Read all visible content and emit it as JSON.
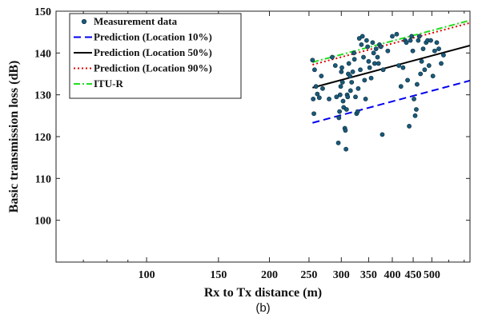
{
  "caption": "(b)",
  "chart_data": {
    "type": "scatter",
    "xlabel": "Rx to Tx distance (m)",
    "ylabel": "Basic transmission loss (dB)",
    "xscale": "log",
    "xlim": [
      60,
      620
    ],
    "ylim": [
      90,
      150
    ],
    "xticks": [
      100,
      150,
      200,
      250,
      300,
      350,
      400,
      450,
      500
    ],
    "xtick_labels": [
      "100",
      "150",
      "200",
      "250",
      "300",
      "350",
      "400",
      "450",
      "500"
    ],
    "yticks": [
      100,
      110,
      120,
      130,
      140,
      150
    ],
    "ytick_labels": [
      "100",
      "110",
      "120",
      "130",
      "140",
      "150"
    ],
    "grid": false,
    "legend_position": "top-left",
    "measurement": {
      "name": "Measurement data",
      "color": "#1a5a7a",
      "points": [
        [
          255,
          138.3
        ],
        [
          256,
          129.0
        ],
        [
          257,
          125.5
        ],
        [
          258,
          136.0
        ],
        [
          260,
          132.0
        ],
        [
          262,
          130.2
        ],
        [
          265,
          129.3
        ],
        [
          268,
          134.5
        ],
        [
          270,
          131.5
        ],
        [
          280,
          129.0
        ],
        [
          285,
          139.0
        ],
        [
          290,
          137.0
        ],
        [
          292,
          129.5
        ],
        [
          295,
          118.5
        ],
        [
          296,
          124.5
        ],
        [
          297,
          126.0
        ],
        [
          298,
          130.0
        ],
        [
          299,
          132.0
        ],
        [
          300,
          135.5
        ],
        [
          301,
          136.5
        ],
        [
          302,
          133.0
        ],
        [
          303,
          128.5
        ],
        [
          304,
          127.0
        ],
        [
          306,
          122.0
        ],
        [
          307,
          121.5
        ],
        [
          308,
          117.0
        ],
        [
          309,
          126.5
        ],
        [
          310,
          130.0
        ],
        [
          311,
          129.5
        ],
        [
          312,
          135.0
        ],
        [
          313,
          137.5
        ],
        [
          315,
          134.5
        ],
        [
          316,
          131.0
        ],
        [
          318,
          133.0
        ],
        [
          320,
          135.5
        ],
        [
          322,
          140.0
        ],
        [
          323,
          138.5
        ],
        [
          325,
          129.5
        ],
        [
          327,
          125.5
        ],
        [
          329,
          126.0
        ],
        [
          330,
          131.5
        ],
        [
          332,
          143.5
        ],
        [
          334,
          136.0
        ],
        [
          336,
          142.0
        ],
        [
          338,
          144.0
        ],
        [
          340,
          139.0
        ],
        [
          342,
          133.5
        ],
        [
          344,
          129.0
        ],
        [
          346,
          143.0
        ],
        [
          348,
          141.5
        ],
        [
          350,
          138.0
        ],
        [
          352,
          136.5
        ],
        [
          355,
          134.0
        ],
        [
          358,
          142.5
        ],
        [
          360,
          140.0
        ],
        [
          362,
          137.5
        ],
        [
          365,
          141.0
        ],
        [
          368,
          139.0
        ],
        [
          370,
          137.5
        ],
        [
          372,
          142.0
        ],
        [
          375,
          141.5
        ],
        [
          378,
          120.5
        ],
        [
          380,
          136.0
        ],
        [
          390,
          140.5
        ],
        [
          400,
          144.0
        ],
        [
          410,
          144.5
        ],
        [
          415,
          137.0
        ],
        [
          420,
          132.0
        ],
        [
          425,
          136.5
        ],
        [
          430,
          143.0
        ],
        [
          433,
          142.5
        ],
        [
          436,
          133.5
        ],
        [
          440,
          122.5
        ],
        [
          443,
          143.0
        ],
        [
          446,
          144.0
        ],
        [
          449,
          140.5
        ],
        [
          452,
          129.0
        ],
        [
          455,
          125.0
        ],
        [
          458,
          126.5
        ],
        [
          460,
          132.5
        ],
        [
          463,
          143.0
        ],
        [
          466,
          144.0
        ],
        [
          469,
          135.0
        ],
        [
          472,
          138.0
        ],
        [
          476,
          141.0
        ],
        [
          480,
          136.0
        ],
        [
          484,
          142.5
        ],
        [
          488,
          143.0
        ],
        [
          492,
          137.0
        ],
        [
          497,
          143.0
        ],
        [
          503,
          134.5
        ],
        [
          508,
          140.5
        ],
        [
          514,
          142.5
        ],
        [
          520,
          141.0
        ],
        [
          527,
          137.5
        ],
        [
          534,
          139.5
        ]
      ]
    },
    "series": [
      {
        "name": "Prediction (Location 10%)",
        "color": "#0000ee",
        "dash": "dashed",
        "x": [
          255,
          620
        ],
        "y": [
          123.3,
          133.4
        ]
      },
      {
        "name": "Prediction (Location 50%)",
        "color": "#000000",
        "dash": "solid",
        "x": [
          255,
          620
        ],
        "y": [
          131.7,
          141.8
        ]
      },
      {
        "name": "Prediction (Location 90%)",
        "color": "#e00000",
        "dash": "dotted",
        "x": [
          255,
          620
        ],
        "y": [
          137.2,
          147.2
        ]
      },
      {
        "name": "ITU-R",
        "color": "#22dd22",
        "dash": "dashdot",
        "x": [
          255,
          620
        ],
        "y": [
          137.8,
          147.8
        ]
      }
    ]
  }
}
